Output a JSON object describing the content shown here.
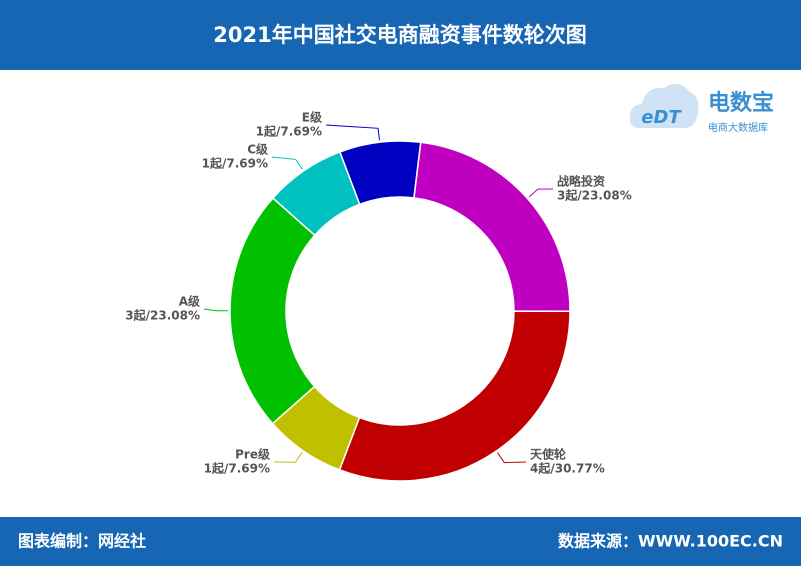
{
  "chart_data": {
    "type": "donut",
    "title": "2021年中国社交电商融资事件数轮次图",
    "categories": [
      "战略投资",
      "天使轮",
      "Pre级",
      "A级",
      "C级",
      "E级"
    ],
    "values": [
      3,
      4,
      1,
      3,
      1,
      1
    ],
    "value_labels": [
      "3起/23.08%",
      "4起/30.77%",
      "1起/7.69%",
      "3起/23.08%",
      "1起/7.69%",
      "1起/7.69%"
    ],
    "colors": [
      "#c000c0",
      "#c00000",
      "#c0c000",
      "#00c000",
      "#00c0c0",
      "#0000c0"
    ]
  },
  "logo": {
    "name": "电数宝",
    "subtitle": "电商大数据库",
    "mark": "eDT"
  },
  "footer": {
    "left": "图表编制：网经社",
    "right": "数据来源：WWW.100EC.CN"
  }
}
